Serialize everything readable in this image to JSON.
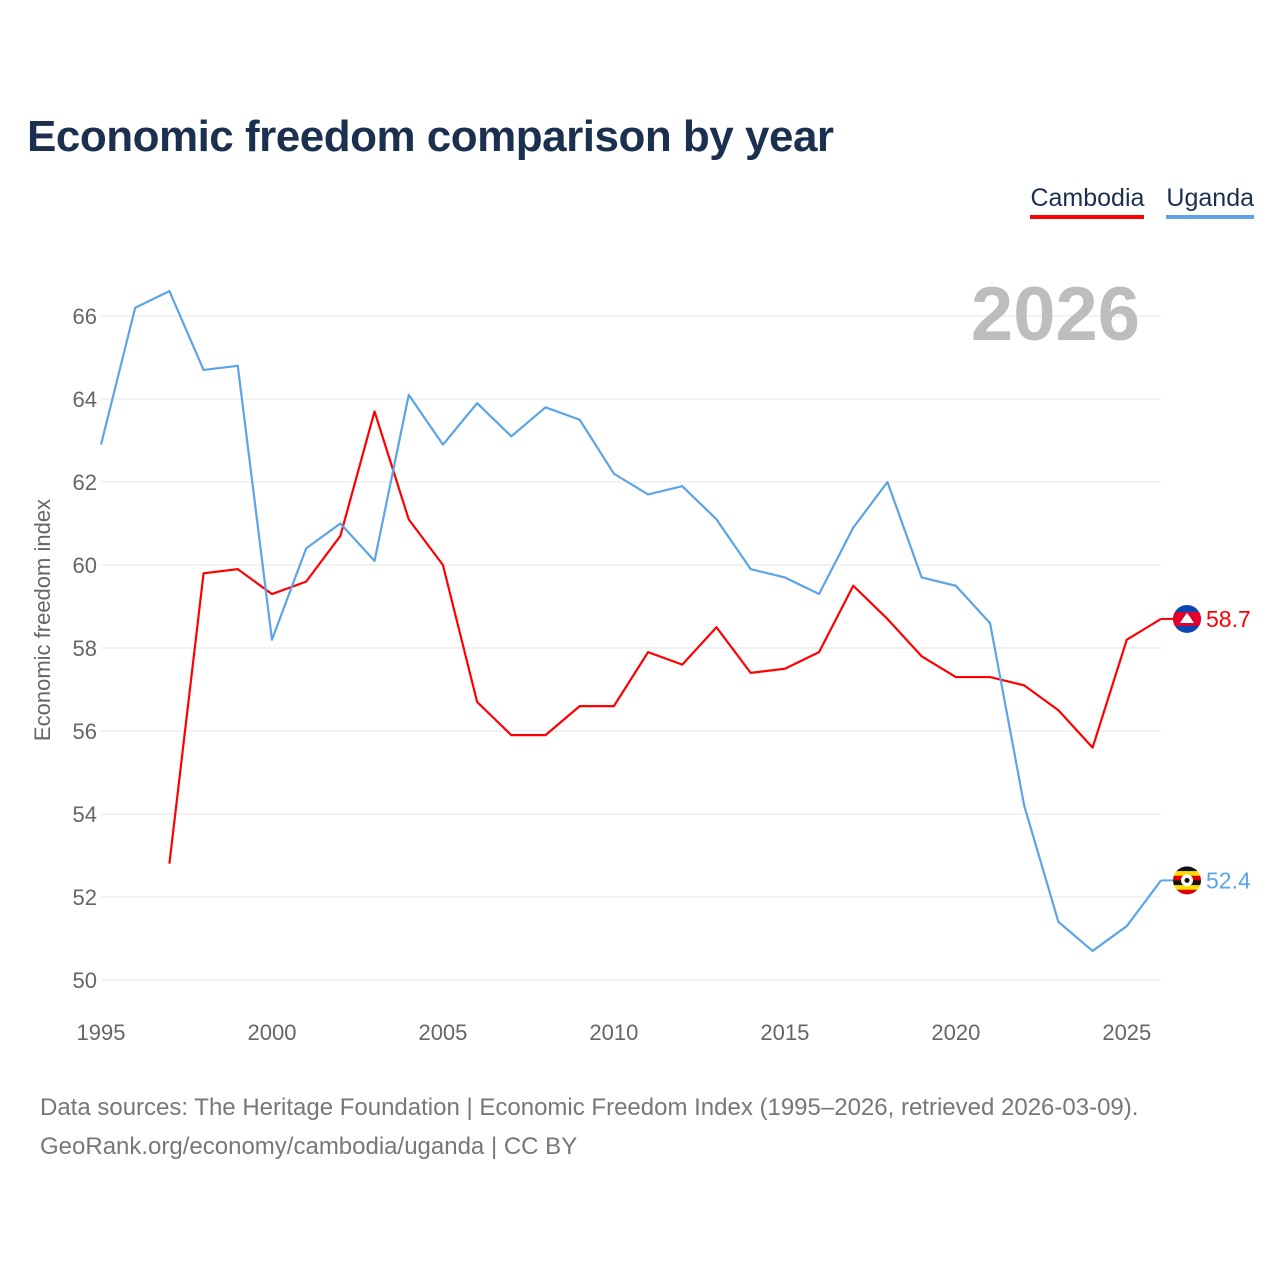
{
  "title": "Economic freedom comparison by year",
  "year_watermark": "2026",
  "footer": {
    "line1": "Data sources: The Heritage Foundation | Economic Freedom Index (1995–2026, retrieved 2026-03-09).",
    "line2": "GeoRank.org/economy/cambodia/uganda | CC BY"
  },
  "chart_data": {
    "type": "line",
    "title": "Economic freedom comparison by year",
    "xlabel": "",
    "ylabel": "Economic freedom index",
    "xlim": [
      1995,
      2026
    ],
    "ylim": [
      50,
      66
    ],
    "xticks": [
      1995,
      2000,
      2005,
      2010,
      2015,
      2020,
      2025
    ],
    "yticks": [
      50,
      52,
      54,
      56,
      58,
      60,
      62,
      64,
      66
    ],
    "grid": true,
    "legend_position": "top-right",
    "series": [
      {
        "name": "Cambodia",
        "color": "#ff0000",
        "end_label": "58.7",
        "flag": "cambodia-flag",
        "x": [
          1997,
          1998,
          1999,
          2000,
          2001,
          2002,
          2003,
          2004,
          2005,
          2006,
          2007,
          2008,
          2009,
          2010,
          2011,
          2012,
          2013,
          2014,
          2015,
          2016,
          2017,
          2018,
          2019,
          2020,
          2021,
          2022,
          2023,
          2024,
          2025,
          2026
        ],
        "values": [
          52.8,
          59.8,
          59.9,
          59.3,
          59.6,
          60.7,
          63.7,
          61.1,
          60.0,
          56.7,
          55.9,
          55.9,
          56.6,
          56.6,
          57.9,
          57.6,
          58.5,
          57.4,
          57.5,
          57.9,
          59.5,
          58.7,
          57.8,
          57.3,
          57.3,
          57.1,
          56.5,
          55.6,
          58.2,
          58.7
        ]
      },
      {
        "name": "Uganda",
        "color": "#5ba4e8",
        "end_label": "52.4",
        "flag": "uganda-flag",
        "x": [
          1995,
          1996,
          1997,
          1998,
          1999,
          2000,
          2001,
          2002,
          2003,
          2004,
          2005,
          2006,
          2007,
          2008,
          2009,
          2010,
          2011,
          2012,
          2013,
          2014,
          2015,
          2016,
          2017,
          2018,
          2019,
          2020,
          2021,
          2022,
          2023,
          2024,
          2025,
          2026
        ],
        "values": [
          62.9,
          66.2,
          66.6,
          64.7,
          64.8,
          58.2,
          60.4,
          61.0,
          60.1,
          64.1,
          62.9,
          63.9,
          63.1,
          63.8,
          63.5,
          62.2,
          61.7,
          61.9,
          61.1,
          59.9,
          59.7,
          59.3,
          60.9,
          62.0,
          59.7,
          59.5,
          58.6,
          54.2,
          51.4,
          50.7,
          51.3,
          52.4
        ]
      }
    ]
  }
}
